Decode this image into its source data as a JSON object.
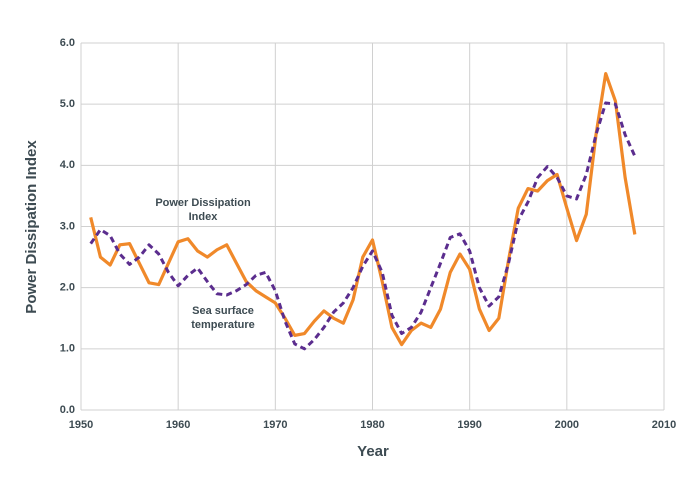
{
  "chart_data": {
    "type": "line",
    "x_label": "Year",
    "y_label": "Power Dissipation Index",
    "x": [
      1951,
      1952,
      1953,
      1954,
      1955,
      1956,
      1957,
      1958,
      1959,
      1960,
      1961,
      1962,
      1963,
      1964,
      1965,
      1966,
      1967,
      1968,
      1969,
      1970,
      1971,
      1972,
      1973,
      1974,
      1975,
      1976,
      1977,
      1978,
      1979,
      1980,
      1981,
      1982,
      1983,
      1984,
      1985,
      1986,
      1987,
      1988,
      1989,
      1990,
      1991,
      1992,
      1993,
      1994,
      1995,
      1996,
      1997,
      1998,
      1999,
      2000,
      2001,
      2002,
      2003,
      2004,
      2005,
      2006,
      2007
    ],
    "series": [
      {
        "name": "Power Dissipation Index",
        "color": "#f0892a",
        "dashed": false,
        "values": [
          3.15,
          2.5,
          2.37,
          2.7,
          2.72,
          2.4,
          2.08,
          2.05,
          2.4,
          2.75,
          2.8,
          2.6,
          2.5,
          2.62,
          2.7,
          2.4,
          2.1,
          1.95,
          1.85,
          1.75,
          1.5,
          1.22,
          1.25,
          1.45,
          1.62,
          1.5,
          1.42,
          1.8,
          2.5,
          2.78,
          2.1,
          1.35,
          1.07,
          1.3,
          1.42,
          1.35,
          1.65,
          2.25,
          2.55,
          2.3,
          1.65,
          1.3,
          1.5,
          2.45,
          3.3,
          3.62,
          3.58,
          3.75,
          3.85,
          3.3,
          2.77,
          3.2,
          4.5,
          5.5,
          5.05,
          3.8,
          2.87
        ]
      },
      {
        "name": "Sea surface temperature",
        "color": "#5b2d8e",
        "dashed": true,
        "values": [
          2.72,
          2.95,
          2.85,
          2.55,
          2.38,
          2.5,
          2.7,
          2.55,
          2.25,
          2.03,
          2.2,
          2.32,
          2.1,
          1.9,
          1.88,
          1.95,
          2.05,
          2.2,
          2.25,
          1.95,
          1.45,
          1.08,
          1.0,
          1.15,
          1.35,
          1.6,
          1.75,
          2.0,
          2.35,
          2.6,
          2.25,
          1.55,
          1.25,
          1.35,
          1.6,
          2.0,
          2.4,
          2.82,
          2.88,
          2.6,
          2.0,
          1.7,
          1.85,
          2.4,
          3.1,
          3.4,
          3.8,
          3.98,
          3.8,
          3.5,
          3.45,
          3.85,
          4.5,
          5.02,
          5.0,
          4.5,
          4.15
        ]
      }
    ],
    "annotations": [
      {
        "lines": [
          "Power Dissipation",
          "Index"
        ]
      },
      {
        "lines": [
          "Sea surface",
          "temperature"
        ]
      }
    ],
    "xlim": [
      1950,
      2010
    ],
    "xticks": [
      1950,
      1960,
      1970,
      1980,
      1990,
      2000,
      2010
    ],
    "ylim": [
      0,
      6
    ],
    "yticks": [
      {
        "value": 0,
        "label": "0.0"
      },
      {
        "value": 1,
        "label": "1.0"
      },
      {
        "value": 2,
        "label": "2.0"
      },
      {
        "value": 3,
        "label": "3.0"
      },
      {
        "value": 4,
        "label": "4.0"
      },
      {
        "value": 5,
        "label": "5.0"
      },
      {
        "value": 6,
        "label": "6.0"
      }
    ],
    "grid": true
  }
}
